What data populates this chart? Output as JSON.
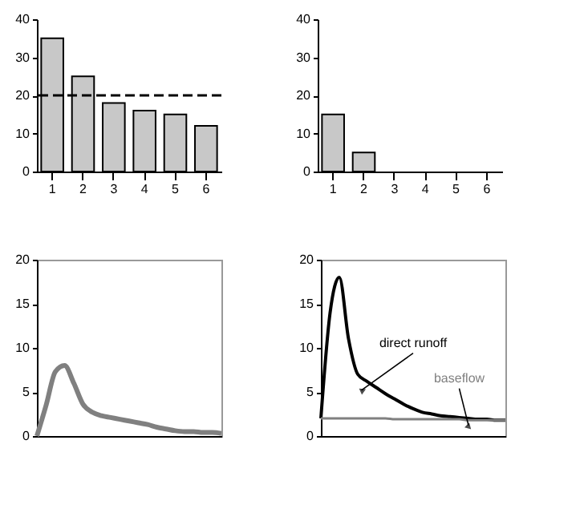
{
  "chart_data": [
    {
      "type": "bar",
      "categories": [
        "1",
        "2",
        "3",
        "4",
        "5",
        "6"
      ],
      "values": [
        35,
        25,
        18,
        16,
        15,
        12
      ],
      "color": "#c8c8c8",
      "ylim": [
        0,
        40
      ],
      "yticks": [
        0,
        10,
        20,
        30,
        40
      ],
      "ref_lines": [
        {
          "axis": "y",
          "value": 20,
          "color": "#000000",
          "line_style": "dashed"
        }
      ]
    },
    {
      "type": "bar",
      "categories": [
        "1",
        "2",
        "3",
        "4",
        "5",
        "6"
      ],
      "values": [
        15,
        5,
        0,
        0,
        0,
        0
      ],
      "color": "#c8c8c8",
      "ylim": [
        0,
        40
      ],
      "yticks": [
        0,
        10,
        20,
        30,
        40
      ]
    },
    {
      "type": "line",
      "categories": [
        null,
        null,
        null,
        null,
        null,
        null,
        null,
        null,
        null,
        null,
        null,
        null,
        null,
        null,
        null,
        null,
        null,
        null,
        null,
        null,
        null
      ],
      "values": [
        0,
        3.5,
        7.3,
        8.0,
        6.0,
        3.6,
        2.7,
        2.3,
        2.1,
        1.9,
        1.7,
        1.5,
        1.3,
        1.0,
        0.8,
        0.6,
        0.5,
        0.5,
        0.4,
        0.4,
        0.3
      ],
      "color": "#808080",
      "ylim": [
        0,
        20
      ],
      "yticks": [
        0,
        5,
        10,
        15,
        20
      ],
      "tick_labels": "y"
    },
    {
      "type": "line",
      "categories": [
        null,
        null,
        null,
        null,
        null,
        null,
        null,
        null,
        null,
        null,
        null,
        null,
        null,
        null,
        null,
        null,
        null,
        null,
        null,
        null,
        null
      ],
      "series": [
        {
          "name": "direct runoff",
          "color": "#000000",
          "values": [
            2,
            14,
            18,
            11,
            7,
            6.2,
            5.5,
            4.8,
            4.2,
            3.6,
            3.1,
            2.7,
            2.5,
            2.3,
            2.2,
            2.1,
            2.0,
            1.9,
            1.9,
            1.8,
            1.8
          ]
        },
        {
          "name": "baseflow",
          "color": "#808080",
          "values": [
            2,
            2,
            2,
            2,
            2,
            2,
            2,
            2,
            1.9,
            1.9,
            1.9,
            1.9,
            1.9,
            1.9,
            1.9,
            1.9,
            1.8,
            1.8,
            1.8,
            1.8,
            1.8
          ]
        }
      ],
      "ylim": [
        0,
        20
      ],
      "yticks": [
        0,
        5,
        10,
        15,
        20
      ],
      "tick_labels": "y"
    }
  ]
}
